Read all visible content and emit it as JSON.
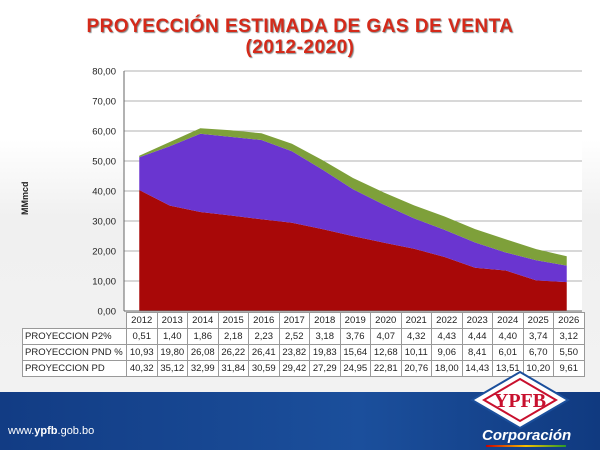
{
  "title_line1": "PROYECCIÓN ESTIMADA DE GAS DE VENTA",
  "title_line2": "(2012-2020)",
  "footer_url_prefix": "www.",
  "footer_url_bold": "ypfb",
  "footer_url_suffix": ".gob.bo",
  "logo_text": "YPFB",
  "logo_subtitle": "Corporación",
  "chart_data": {
    "type": "area",
    "stacked": true,
    "ylabel": "MMmcd",
    "ylim": [
      0,
      80
    ],
    "yticks": [
      "0,00",
      "10,00",
      "20,00",
      "30,00",
      "40,00",
      "50,00",
      "60,00",
      "70,00",
      "80,00"
    ],
    "grid": true,
    "categories": [
      "2012",
      "2013",
      "2014",
      "2015",
      "2016",
      "2017",
      "2018",
      "2019",
      "2020",
      "2021",
      "2022",
      "2023",
      "2024",
      "2025",
      "2026"
    ],
    "series": [
      {
        "name": "PROYECCION PD",
        "color": "#a80808",
        "values": [
          40.32,
          35.12,
          32.99,
          31.84,
          30.59,
          29.42,
          27.29,
          24.95,
          22.81,
          20.76,
          18.0,
          14.43,
          13.51,
          10.2,
          9.61
        ],
        "labels": [
          "40,32",
          "35,12",
          "32,99",
          "31,84",
          "30,59",
          "29,42",
          "27,29",
          "24,95",
          "22,81",
          "20,76",
          "18,00",
          "14,43",
          "13,51",
          "10,20",
          "9,61"
        ]
      },
      {
        "name": "PROYECCION PND %",
        "color": "#6a35d0",
        "values": [
          10.93,
          19.8,
          26.08,
          26.22,
          26.41,
          23.82,
          19.83,
          15.64,
          12.68,
          10.11,
          9.06,
          8.41,
          6.01,
          6.7,
          5.5
        ],
        "labels": [
          "10,93",
          "19,80",
          "26,08",
          "26,22",
          "26,41",
          "23,82",
          "19,83",
          "15,64",
          "12,68",
          "10,11",
          "9,06",
          "8,41",
          "6,01",
          "6,70",
          "5,50"
        ]
      },
      {
        "name": "PROYECCION P2%",
        "color": "#7ea03a",
        "values": [
          0.51,
          1.4,
          1.86,
          2.18,
          2.23,
          2.52,
          3.18,
          3.76,
          4.07,
          4.32,
          4.43,
          4.44,
          4.4,
          3.74,
          3.12
        ],
        "labels": [
          "0,51",
          "1,40",
          "1,86",
          "2,18",
          "2,23",
          "2,52",
          "3,18",
          "3,76",
          "4,07",
          "4,32",
          "4,43",
          "4,44",
          "4,40",
          "3,74",
          "3,12"
        ]
      }
    ],
    "table_row_order": [
      2,
      1,
      0
    ]
  }
}
